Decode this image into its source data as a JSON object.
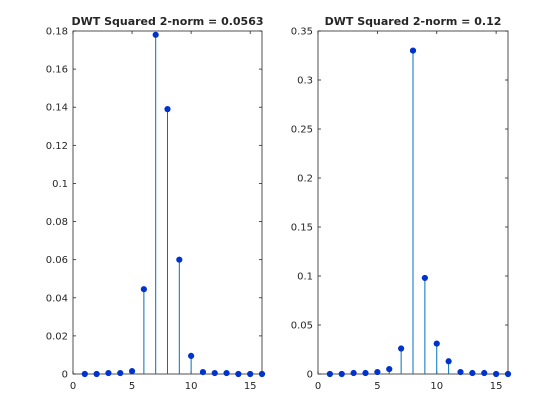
{
  "chart_data": [
    {
      "type": "stem",
      "title": "DWT Squared 2-norm = 0.0563",
      "xlabel": "",
      "ylabel": "",
      "xlim": [
        0,
        16
      ],
      "ylim": [
        0,
        0.18
      ],
      "xticks": [
        "0",
        "5",
        "10",
        "15"
      ],
      "yticks": [
        "0",
        "0.02",
        "0.04",
        "0.06",
        "0.08",
        "0.1",
        "0.12",
        "0.14",
        "0.16",
        "0.18"
      ],
      "grid": false,
      "color": "#0072BD",
      "marker_color": "#0033CC",
      "series": [
        {
          "x": [
            1,
            2,
            3,
            4,
            5,
            6,
            7,
            8,
            9,
            10,
            11,
            12,
            13,
            14,
            15,
            16
          ],
          "values": [
            0.0,
            0.0,
            0.0005,
            0.0005,
            0.0015,
            0.0445,
            0.178,
            0.139,
            0.06,
            0.0095,
            0.001,
            0.0005,
            0.0005,
            0.0,
            0.0,
            0.0
          ]
        }
      ]
    },
    {
      "type": "stem",
      "title": "DWT Squared 2-norm = 0.12",
      "xlabel": "",
      "ylabel": "",
      "xlim": [
        0,
        16
      ],
      "ylim": [
        0,
        0.35
      ],
      "xticks": [
        "0",
        "5",
        "10",
        "15"
      ],
      "yticks": [
        "0",
        "0.05",
        "0.1",
        "0.15",
        "0.2",
        "0.25",
        "0.3",
        "0.35"
      ],
      "grid": false,
      "color": "#0072BD",
      "marker_color": "#0033CC",
      "series": [
        {
          "x": [
            1,
            2,
            3,
            4,
            5,
            6,
            7,
            8,
            9,
            10,
            11,
            12,
            13,
            14,
            15,
            16
          ],
          "values": [
            0.0,
            0.0,
            0.001,
            0.001,
            0.002,
            0.005,
            0.026,
            0.33,
            0.098,
            0.031,
            0.013,
            0.002,
            0.001,
            0.001,
            0.0,
            0.0
          ]
        }
      ]
    }
  ]
}
